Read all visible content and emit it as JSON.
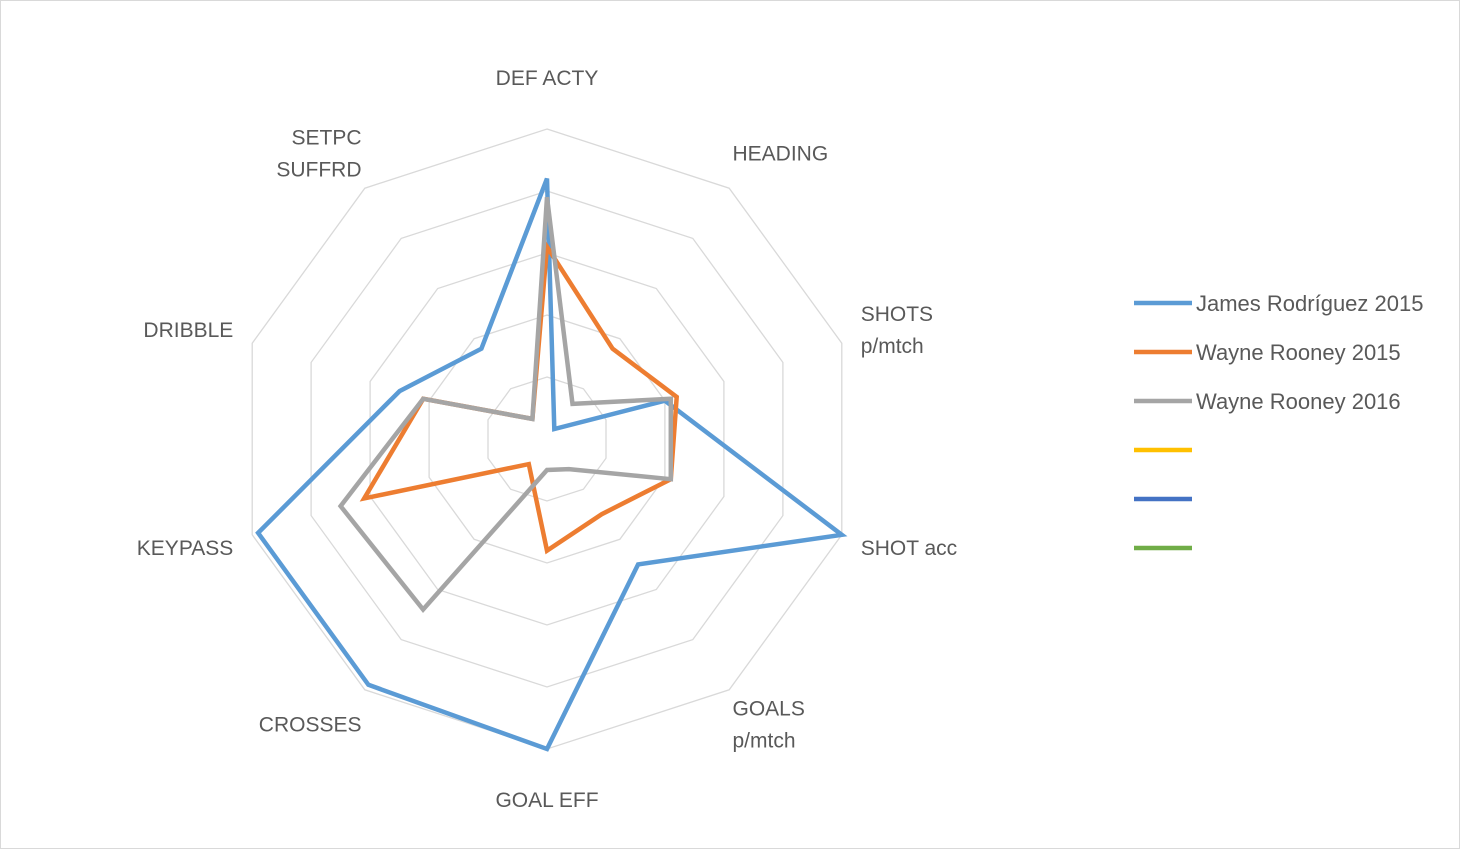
{
  "chart_data": {
    "type": "radar",
    "title": "",
    "axes": [
      [
        "DEF ACTY"
      ],
      [
        "HEADING"
      ],
      [
        "SHOTS",
        "p/mtch"
      ],
      [
        "SHOT acc"
      ],
      [
        "GOALS",
        "p/mtch"
      ],
      [
        "GOAL EFF"
      ],
      [
        "CROSSES"
      ],
      [
        "KEYPASS"
      ],
      [
        "DRIBBLE"
      ],
      [
        "SETPC",
        "SUFFRD"
      ]
    ],
    "range": [
      0,
      5
    ],
    "gridlines": 5,
    "series": [
      {
        "name": "James Rodríguez 2015",
        "color": "#5b9bd5",
        "values": [
          4.2,
          0.2,
          2.0,
          5.0,
          2.5,
          5.0,
          4.9,
          4.9,
          2.5,
          1.8
        ]
      },
      {
        "name": "Wayne Rooney 2015",
        "color": "#ed7d31",
        "values": [
          3.1,
          1.8,
          2.2,
          2.1,
          1.5,
          1.8,
          0.5,
          3.1,
          2.1,
          0.4
        ]
      },
      {
        "name": "Wayne Rooney 2016",
        "color": "#a5a5a5",
        "values": [
          3.9,
          0.7,
          2.1,
          2.1,
          0.6,
          0.5,
          3.4,
          3.5,
          2.1,
          0.4
        ]
      },
      {
        "name": "",
        "color": "#ffc000",
        "values": []
      },
      {
        "name": "",
        "color": "#4472c4",
        "values": []
      },
      {
        "name": "",
        "color": "#70ad47",
        "values": []
      }
    ],
    "legend_position": "right"
  }
}
